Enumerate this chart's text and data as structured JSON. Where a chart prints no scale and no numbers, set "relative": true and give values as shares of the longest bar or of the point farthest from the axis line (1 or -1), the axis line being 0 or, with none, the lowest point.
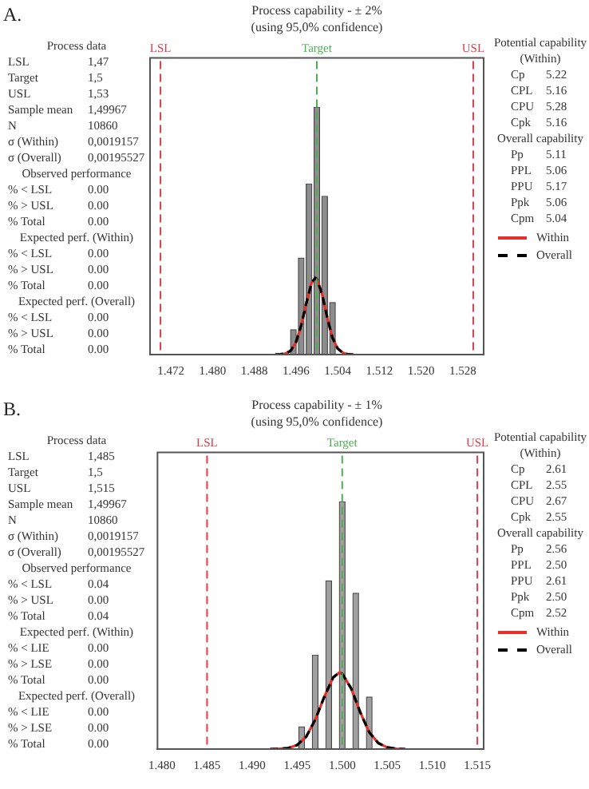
{
  "chart_data": [
    {
      "type": "other",
      "title": "A.",
      "annotations": [
        "Process data",
        "LSL\t1,47",
        "Target\t1,5",
        "USL\t1,53",
        "Sample mean\t1,49967",
        "N\t10860",
        "σ (Within)\t0,0019157",
        "σ (Overall)\t0,00195527",
        "Observed performance",
        "% < LSL\t0.00",
        "% > USL\t0.00",
        "% Total\t0.00",
        "Expected perf. (Within)",
        "% < LSL\t0.00",
        "% > USL\t0.00",
        "% Total\t0.00",
        "Expected perf. (Overall)",
        "% < LSL\t0.00",
        "% > USL\t0.00",
        "% Total\t0.00"
      ]
    },
    {
      "type": "bar",
      "title": "Process capability - ± 2%",
      "subtitle": "(using 95,0% confidence)",
      "relative": true,
      "x": [
        1.4955,
        1.497,
        1.4985,
        1.5,
        1.5015,
        1.503
      ],
      "xlim": [
        1.468,
        1.532
      ],
      "xticks": [
        1.472,
        {
          "value": 1.48,
          "label": "1.480"
        },
        1.488,
        1.496,
        1.504,
        1.512,
        {
          "value": 1.52,
          "label": "1.520"
        },
        1.528
      ],
      "marker": "none",
      "legend": "right",
      "grid": false,
      "series": [
        {
          "color": "#8c8c8c",
          "values": [
            0.1,
            0.39,
            0.69,
            1,
            0.64,
            0.21
          ]
        },
        {
          "name": "Within",
          "type": "line",
          "color": "#e8302a",
          "x": [
            1.492,
            1.493,
            1.494,
            1.495,
            1.496,
            1.497,
            1.498,
            1.499,
            1.4997,
            1.5,
            1.501,
            1.502,
            1.503,
            1.504,
            1.505,
            1.506,
            1.507
          ],
          "values": [
            0,
            0.001,
            0.004,
            0.016,
            0.05,
            0.118,
            0.21,
            0.29,
            0.31,
            0.305,
            0.245,
            0.149,
            0.068,
            0.024,
            0.007,
            0.001,
            0
          ]
        },
        {
          "name": "Overall",
          "type": "line",
          "line_style": "dashed",
          "color": "#000000",
          "x": [
            1.492,
            1.493,
            1.494,
            1.495,
            1.496,
            1.497,
            1.498,
            1.499,
            1.4997,
            1.5,
            1.501,
            1.502,
            1.503,
            1.504,
            1.505,
            1.506,
            1.507
          ],
          "values": [
            0,
            0.001,
            0.004,
            0.016,
            0.05,
            0.118,
            0.21,
            0.29,
            0.31,
            0.305,
            0.245,
            0.149,
            0.068,
            0.024,
            0.007,
            0.001,
            0
          ]
        }
      ],
      "ref_lines": [
        {
          "axis": "x",
          "value": 1.47,
          "label": "LSL",
          "color": "#e03c4a",
          "line_style": "dashed"
        },
        {
          "axis": "x",
          "value": 1.5,
          "label": "Target",
          "color": "#4caf50",
          "line_style": "dashed"
        },
        {
          "axis": "x",
          "value": 1.53,
          "label": "USL",
          "color": "#e03c4a",
          "line_style": "dashed"
        }
      ]
    },
    {
      "type": "other",
      "annotations": [
        "Potential capability",
        "(Within)",
        "Cp\t5.22",
        "CPL\t5.16",
        "CPU\t5.28",
        "Cpk\t5.16",
        "Overall capability",
        "Pp\t5.11",
        "PPL\t5.06",
        "PPU\t5.17",
        "Ppk\t5.06",
        "Cpm\t5.04"
      ]
    },
    {
      "type": "other",
      "title": "B.",
      "annotations": [
        "Process data",
        "LSL\t1,485",
        "Target\t1,5",
        "USL\t1,515",
        "Sample mean\t1,49967",
        "N\t10860",
        "σ (Within)\t0,0019157",
        "σ (Overall)\t0,00195527",
        "Observed performance",
        "% < LSL\t0.04",
        "% > USL\t0.00",
        "% Total\t0.04",
        "Expected perf. (Within)",
        "% < LIE\t0.00",
        "% > LSE\t0.00",
        "% Total\t0.00",
        "Expected perf. (Overall)",
        "% < LIE\t0.00",
        "% > LSE\t0.00",
        "% Total\t0.00"
      ]
    },
    {
      "type": "bar",
      "title": "Process capability - ± 1%",
      "subtitle": "(using 95,0% confidence)",
      "relative": true,
      "x": [
        1.4955,
        1.497,
        1.4985,
        1.5,
        1.5015,
        1.503
      ],
      "xlim": [
        1.4795,
        1.5157
      ],
      "xticks": [
        {
          "value": 1.48,
          "label": "1.480"
        },
        1.485,
        {
          "value": 1.49,
          "label": "1.490"
        },
        1.495,
        {
          "value": 1.5,
          "label": "1.500"
        },
        1.505,
        {
          "value": 1.51,
          "label": "1.510"
        },
        1.515
      ],
      "marker": "none",
      "legend": "right",
      "grid": false,
      "series": [
        {
          "color": "#a0a0a0",
          "values": [
            0.09,
            0.38,
            0.68,
            1,
            0.63,
            0.21
          ]
        },
        {
          "name": "Within",
          "type": "line",
          "color": "#e8302a",
          "x": [
            1.492,
            1.493,
            1.494,
            1.495,
            1.496,
            1.497,
            1.498,
            1.499,
            1.4997,
            1.5,
            1.501,
            1.502,
            1.503,
            1.504,
            1.505,
            1.506,
            1.507
          ],
          "values": [
            0,
            0.001,
            0.004,
            0.016,
            0.05,
            0.118,
            0.21,
            0.29,
            0.31,
            0.305,
            0.245,
            0.149,
            0.068,
            0.024,
            0.007,
            0.001,
            0
          ]
        },
        {
          "name": "Overall",
          "type": "line",
          "line_style": "dashed",
          "color": "#000000",
          "x": [
            1.492,
            1.493,
            1.494,
            1.495,
            1.496,
            1.497,
            1.498,
            1.499,
            1.4997,
            1.5,
            1.501,
            1.502,
            1.503,
            1.504,
            1.505,
            1.506,
            1.507
          ],
          "values": [
            0,
            0.001,
            0.004,
            0.016,
            0.05,
            0.118,
            0.21,
            0.29,
            0.31,
            0.305,
            0.245,
            0.149,
            0.068,
            0.024,
            0.007,
            0.001,
            0
          ]
        }
      ],
      "ref_lines": [
        {
          "axis": "x",
          "value": 1.485,
          "label": "LSL",
          "color": "#e03c4a",
          "line_style": "dashed"
        },
        {
          "axis": "x",
          "value": 1.5,
          "label": "Target",
          "color": "#4caf50",
          "line_style": "dashed"
        },
        {
          "axis": "x",
          "value": 1.515,
          "label": "USL",
          "color": "#e03c4a",
          "line_style": "dashed"
        }
      ]
    },
    {
      "type": "other",
      "annotations": [
        "Potential capability",
        "(Within)",
        "Cp\t2.61",
        "CPL\t2.55",
        "CPU\t2.67",
        "Cpk\t2.55",
        "Overall capability",
        "Pp\t2.56",
        "PPL\t2.50",
        "PPU\t2.61",
        "Ppk\t2.50",
        "Cpm\t2.52"
      ]
    }
  ]
}
